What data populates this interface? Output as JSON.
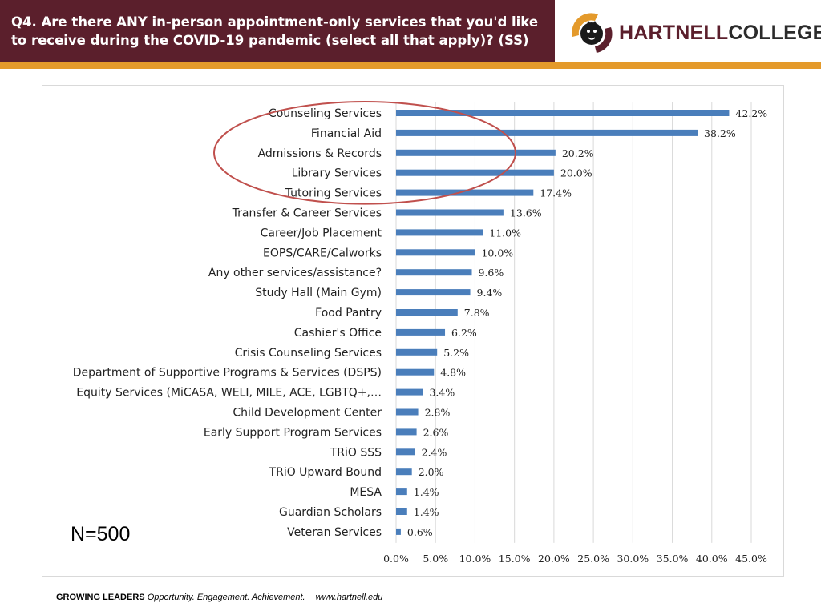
{
  "header": {
    "title": "Q4. Are there ANY in-person appointment-only services that you'd like to receive during the COVID-19 pandemic (select all that apply)? (SS)"
  },
  "logo": {
    "text_part1": "HARTNELL",
    "text_part2": "COLLEGE",
    "icon": "panther-crest-icon",
    "colors": {
      "maroon": "#5b1f2c",
      "gold": "#e49a2b"
    }
  },
  "chart_data": {
    "type": "bar",
    "orientation": "horizontal",
    "categories": [
      "Counseling Services",
      "Financial Aid",
      "Admissions & Records",
      "Library Services",
      "Tutoring Services",
      "Transfer & Career Services",
      "Career/Job Placement",
      "EOPS/CARE/Calworks",
      "Any other services/assistance?",
      "Study Hall (Main Gym)",
      "Food Pantry",
      "Cashier's Office",
      "Crisis Counseling Services",
      "Department of Supportive Programs & Services (DSPS)",
      "Equity Services (MiCASA, WELI, MILE, ACE, LGBTQ+,…",
      "Child Development Center",
      "Early Support Program Services",
      "TRiO SSS",
      "TRiO Upward Bound",
      "MESA",
      "Guardian Scholars",
      "Veteran Services"
    ],
    "values": [
      42.2,
      38.2,
      20.2,
      20.0,
      17.4,
      13.6,
      11.0,
      10.0,
      9.6,
      9.4,
      7.8,
      6.2,
      5.2,
      4.8,
      3.4,
      2.8,
      2.6,
      2.4,
      2.0,
      1.4,
      1.4,
      0.6
    ],
    "value_labels": [
      "42.2%",
      "38.2%",
      "20.2%",
      "20.0%",
      "17.4%",
      "13.6%",
      "11.0%",
      "10.0%",
      "9.6%",
      "9.4%",
      "7.8%",
      "6.2%",
      "5.2%",
      "4.8%",
      "3.4%",
      "2.8%",
      "2.6%",
      "2.4%",
      "2.0%",
      "1.4%",
      "1.4%",
      "0.6%"
    ],
    "xlim": [
      0,
      45
    ],
    "x_ticks": [
      "0.0%",
      "5.0%",
      "10.0%",
      "15.0%",
      "20.0%",
      "25.0%",
      "30.0%",
      "35.0%",
      "40.0%",
      "45.0%"
    ],
    "gridlines": true,
    "bar_color": "#4a7ebb",
    "grid_color": "#d9d9d9",
    "annotation": {
      "shape": "ellipse",
      "color": "#c0504d",
      "encircles": [
        "Counseling Services",
        "Financial Aid",
        "Admissions & Records",
        "Library Services",
        "Tutoring Services"
      ]
    },
    "note": "N=500"
  },
  "footer": {
    "bold": "GROWING LEADERS",
    "tagline": "Opportunity. Engagement. Achievement.",
    "url": "www.hartnell.edu"
  }
}
